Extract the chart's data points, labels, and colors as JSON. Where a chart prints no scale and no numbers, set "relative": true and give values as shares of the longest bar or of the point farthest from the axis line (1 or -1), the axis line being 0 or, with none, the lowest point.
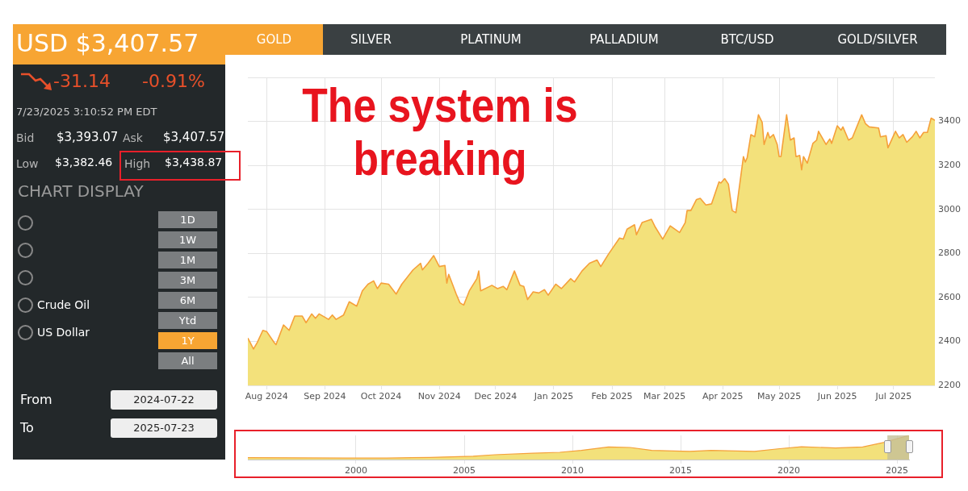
{
  "chart_data": [
    {
      "type": "other",
      "title": "USD $3,407.57",
      "annotations": [
        "GOLD",
        "SILVER",
        "PLATINUM",
        "PALLADIUM",
        "BTC/USD",
        "GOLD/SILVER",
        "-31.14",
        "-0.91%",
        "7/23/2025 3:10:52 PM EDT",
        "Bid",
        "$3,393.07",
        "Ask",
        "$3,407.57",
        "Low",
        "$3,382.46",
        "High",
        "$3,438.87",
        "CHART DISPLAY",
        "Crude Oil",
        "US Dollar",
        "1D",
        "1W",
        "1M",
        "3M",
        "6M",
        "Ytd",
        "1Y",
        "All",
        "From",
        "2024-07-22",
        "To",
        "2025-07-23"
      ]
    },
    {
      "type": "area",
      "annotations": [
        "The system is breaking"
      ],
      "grid": true,
      "legend": false,
      "marker": "none",
      "xlim": [
        "2024-07-22",
        "2025-07-23"
      ],
      "xticks": [
        {
          "value": "2024-08",
          "label": "Aug 2024"
        },
        {
          "value": "2024-09",
          "label": "Sep 2024"
        },
        {
          "value": "2024-10",
          "label": "Oct 2024"
        },
        {
          "value": "2024-11",
          "label": "Nov 2024"
        },
        {
          "value": "2024-12",
          "label": "Dec 2024"
        },
        {
          "value": "2025-01",
          "label": "Jan 2025"
        },
        {
          "value": "2025-02",
          "label": "Feb 2025"
        },
        {
          "value": "2025-03",
          "label": "Mar 2025"
        },
        {
          "value": "2025-04",
          "label": "Apr 2025"
        },
        {
          "value": "2025-05",
          "label": "May 2025"
        },
        {
          "value": "2025-06",
          "label": "Jun 2025"
        },
        {
          "value": "2025-07",
          "label": "Jul 2025"
        }
      ],
      "ylim": [
        2200,
        3600
      ],
      "yticks": [
        2200,
        2400,
        2600,
        2800,
        3000,
        3200,
        3400,
        {
          "value": 3600,
          "label": null
        }
      ],
      "series": [
        {
          "color": "#f3e17b",
          "x": [
            "2024-07-22",
            "2024-07-25",
            "2024-07-27",
            "2024-07-30",
            "2024-08-01",
            "2024-08-05",
            "2024-08-06",
            "2024-08-10",
            "2024-08-13",
            "2024-08-16",
            "2024-08-20",
            "2024-08-22",
            "2024-08-25",
            "2024-08-27",
            "2024-08-29",
            "2024-09-03",
            "2024-09-05",
            "2024-09-07",
            "2024-09-11",
            "2024-09-14",
            "2024-09-18",
            "2024-09-21",
            "2024-09-24",
            "2024-09-27",
            "2024-09-29",
            "2024-10-01",
            "2024-10-05",
            "2024-10-09",
            "2024-10-12",
            "2024-10-18",
            "2024-10-22",
            "2024-10-23",
            "2024-10-26",
            "2024-10-29",
            "2024-11-01",
            "2024-11-04",
            "2024-11-05",
            "2024-11-06",
            "2024-11-10",
            "2024-11-12",
            "2024-11-14",
            "2024-11-17",
            "2024-11-21",
            "2024-11-22",
            "2024-11-23",
            "2024-11-29",
            "2024-12-02",
            "2024-12-05",
            "2024-12-07",
            "2024-12-11",
            "2024-12-14",
            "2024-12-16",
            "2024-12-18",
            "2024-12-21",
            "2024-12-24",
            "2024-12-27",
            "2024-12-29",
            "2025-01-02",
            "2025-01-05",
            "2025-01-10",
            "2025-01-12",
            "2025-01-16",
            "2025-01-20",
            "2025-01-24",
            "2025-01-26",
            "2025-01-30",
            "2025-02-05",
            "2025-02-07",
            "2025-02-09",
            "2025-02-13",
            "2025-02-14",
            "2025-02-17",
            "2025-02-22",
            "2025-02-24",
            "2025-02-28",
            "2025-03-04",
            "2025-03-09",
            "2025-03-12",
            "2025-03-13",
            "2025-03-15",
            "2025-03-18",
            "2025-03-20",
            "2025-03-23",
            "2025-03-26",
            "2025-03-30",
            "2025-03-31",
            "2025-04-02",
            "2025-04-04",
            "2025-04-06",
            "2025-04-08",
            "2025-04-12",
            "2025-04-13",
            "2025-04-14",
            "2025-04-16",
            "2025-04-18",
            "2025-04-20",
            "2025-04-22",
            "2025-04-23",
            "2025-04-25",
            "2025-04-26",
            "2025-04-28",
            "2025-04-30",
            "2025-05-01",
            "2025-05-02",
            "2025-05-05",
            "2025-05-07",
            "2025-05-09",
            "2025-05-10",
            "2025-05-12",
            "2025-05-13",
            "2025-05-14",
            "2025-05-16",
            "2025-05-19",
            "2025-05-21",
            "2025-05-22",
            "2025-05-26",
            "2025-05-28",
            "2025-05-29",
            "2025-06-01",
            "2025-06-03",
            "2025-06-04",
            "2025-06-07",
            "2025-06-09",
            "2025-06-14",
            "2025-06-16",
            "2025-06-18",
            "2025-06-23",
            "2025-06-24",
            "2025-06-27",
            "2025-06-28",
            "2025-07-02",
            "2025-07-04",
            "2025-07-06",
            "2025-07-08",
            "2025-07-11",
            "2025-07-13",
            "2025-07-15",
            "2025-07-17",
            "2025-07-19",
            "2025-07-21",
            "2025-07-23"
          ],
          "values": [
            2415,
            2365,
            2395,
            2450,
            2445,
            2395,
            2385,
            2475,
            2450,
            2515,
            2515,
            2485,
            2525,
            2505,
            2525,
            2500,
            2520,
            2500,
            2520,
            2580,
            2560,
            2630,
            2660,
            2675,
            2640,
            2665,
            2660,
            2615,
            2660,
            2725,
            2755,
            2725,
            2755,
            2790,
            2740,
            2745,
            2665,
            2705,
            2615,
            2575,
            2565,
            2630,
            2685,
            2720,
            2630,
            2655,
            2640,
            2650,
            2635,
            2720,
            2655,
            2650,
            2590,
            2625,
            2620,
            2635,
            2610,
            2660,
            2640,
            2685,
            2670,
            2720,
            2755,
            2770,
            2740,
            2795,
            2870,
            2865,
            2910,
            2930,
            2885,
            2940,
            2955,
            2920,
            2865,
            2925,
            2895,
            2940,
            2995,
            2995,
            3045,
            3050,
            3020,
            3025,
            3125,
            3120,
            3140,
            3115,
            2995,
            2985,
            3240,
            3215,
            3235,
            3340,
            3330,
            3430,
            3395,
            3295,
            3350,
            3325,
            3340,
            3295,
            3240,
            3240,
            3430,
            3315,
            3325,
            3240,
            3245,
            3180,
            3240,
            3210,
            3300,
            3315,
            3355,
            3295,
            3320,
            3300,
            3380,
            3360,
            3375,
            3315,
            3325,
            3430,
            3390,
            3375,
            3370,
            3330,
            3335,
            3280,
            3355,
            3325,
            3340,
            3305,
            3330,
            3355,
            3325,
            3350,
            3350,
            3415,
            3405
          ]
        }
      ]
    },
    {
      "type": "area",
      "relative": true,
      "grid": "x",
      "legend": false,
      "marker": "none",
      "xlim": [
        "1995-01",
        "2025-07-23"
      ],
      "xticks": [
        "2000",
        "2005",
        "2010",
        "2015",
        "2020",
        "2025"
      ],
      "bands": [
        {
          "axis": "x",
          "from": "2024-07-22",
          "to": "2025-07-23",
          "color": "#c4bf98"
        }
      ],
      "series": [
        {
          "color": "#f3e17b",
          "x": [
            "1995-01",
            "1997-06",
            "1999-07",
            "2001-06",
            "2003-06",
            "2005-06",
            "2006-06",
            "2008-03",
            "2009-06",
            "2010-06",
            "2011-09",
            "2012-09",
            "2013-09",
            "2015-06",
            "2016-06",
            "2018-06",
            "2019-08",
            "2020-08",
            "2022-03",
            "2023-06",
            "2024-06",
            "2025-07-23"
          ],
          "values": [
            0.08,
            0.07,
            0.06,
            0.06,
            0.09,
            0.14,
            0.2,
            0.26,
            0.3,
            0.38,
            0.52,
            0.5,
            0.38,
            0.34,
            0.38,
            0.34,
            0.45,
            0.53,
            0.48,
            0.52,
            0.71,
            1
          ]
        }
      ]
    }
  ]
}
